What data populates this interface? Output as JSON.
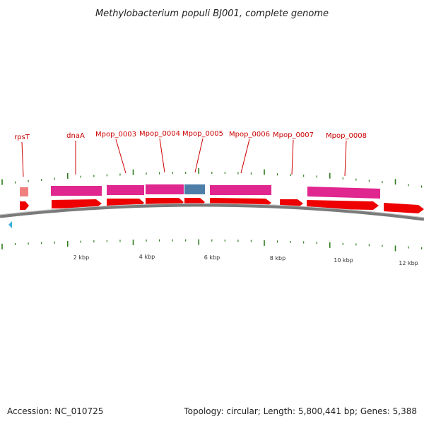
{
  "title": "Methylobacterium populi BJ001, complete genome",
  "accession": "Accession: NC_010725",
  "topology": "Topology: circular; Length: 5,800,441 bp; Genes: 5,388",
  "colors": {
    "cds": "#ee0000",
    "feature_pink": "#e0268f",
    "feature_blue": "#4d7ea8",
    "feature_light": "#f08080",
    "backbone": "#7a7a7a",
    "tick": "#2e7d1e",
    "label": "#cc0000",
    "origin_marker": "#3ab0e0"
  },
  "labels": [
    {
      "id": "rpsT",
      "text": "rpsT"
    },
    {
      "id": "dnaA",
      "text": "dnaA"
    },
    {
      "id": "mpop3",
      "text": "Mpop_0003"
    },
    {
      "id": "mpop4",
      "text": "Mpop_0004"
    },
    {
      "id": "mpop5",
      "text": "Mpop_0005"
    },
    {
      "id": "mpop6",
      "text": "Mpop_0006"
    },
    {
      "id": "mpop7",
      "text": "Mpop_0007"
    },
    {
      "id": "mpop8",
      "text": "Mpop_0008"
    }
  ],
  "scale": [
    {
      "id": "2kbp",
      "text": "2 kbp"
    },
    {
      "id": "4kbp",
      "text": "4 kbp"
    },
    {
      "id": "6kbp",
      "text": "6 kbp"
    },
    {
      "id": "8kbp",
      "text": "8 kbp"
    },
    {
      "id": "10kbp",
      "text": "10 kbp"
    },
    {
      "id": "12kbp",
      "text": "12 kbp"
    }
  ]
}
